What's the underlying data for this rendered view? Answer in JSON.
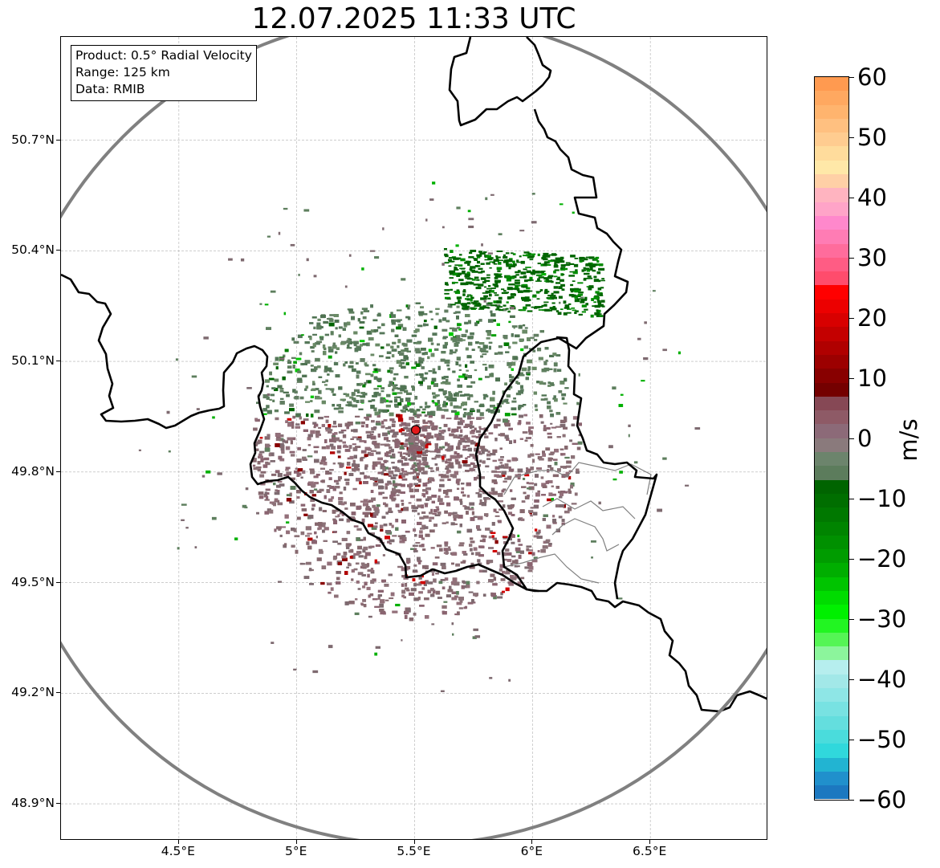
{
  "title": "12.07.2025 11:33 UTC",
  "info_box": {
    "product": "Product: 0.5° Radial Velocity",
    "range": "Range: 125 km",
    "data": "Data: RMIB"
  },
  "map": {
    "lon_range": [
      4.0,
      7.0
    ],
    "lat_range": [
      48.8,
      50.98
    ],
    "radar_site": {
      "lon": 5.505,
      "lat": 49.914
    },
    "range_ring_km": 125,
    "gridlines": true,
    "x_ticks": [
      "4.5°E",
      "5°E",
      "5.5°E",
      "6°E",
      "6.5°E"
    ],
    "x_tick_values": [
      4.5,
      5.0,
      5.5,
      6.0,
      6.5
    ],
    "y_ticks": [
      "50.7°N",
      "50.4°N",
      "50.1°N",
      "49.8°N",
      "49.5°N",
      "49.2°N",
      "48.9°N"
    ],
    "y_tick_values": [
      50.7,
      50.4,
      50.1,
      49.8,
      49.5,
      49.2,
      48.9
    ],
    "colors": {
      "range_ring": "#808080",
      "borders": "#000000",
      "admin_borders": "#808080",
      "radar_marker": "#e31a1c",
      "grid": "#b0b0b0"
    }
  },
  "colorbar": {
    "label": "m/s",
    "min": -60,
    "max": 60,
    "tick_labels": [
      "60",
      "50",
      "40",
      "30",
      "20",
      "10",
      "0",
      "−10",
      "−20",
      "−30",
      "−40",
      "−50",
      "−60"
    ],
    "colors_top_to_bottom": [
      "#ff9a50",
      "#ffa860",
      "#ffb46e",
      "#ffc080",
      "#ffcc90",
      "#ffdc9c",
      "#ffe8a8",
      "#ffd0a6",
      "#ffb4c0",
      "#ffa4c8",
      "#ff88cc",
      "#ff7cb4",
      "#ff6c9c",
      "#ff5c84",
      "#ff4c6c",
      "#ff0000",
      "#ec0000",
      "#d80000",
      "#c40000",
      "#b00000",
      "#9c0000",
      "#880000",
      "#740000",
      "#864855",
      "#8e5a66",
      "#8c6a78",
      "#8a7a7c",
      "#6c846c",
      "#5c7c5c",
      "#006400",
      "#006e00",
      "#007800",
      "#008400",
      "#009000",
      "#009c00",
      "#00ae00",
      "#00c400",
      "#00dc00",
      "#00f000",
      "#22f522",
      "#55f555",
      "#8cf59c",
      "#b6eeee",
      "#a2e8e8",
      "#8ee6e6",
      "#78e2e2",
      "#64dede",
      "#4adcdc",
      "#30d8dc",
      "#22b4d2",
      "#2090cc",
      "#1c78c0"
    ]
  }
}
